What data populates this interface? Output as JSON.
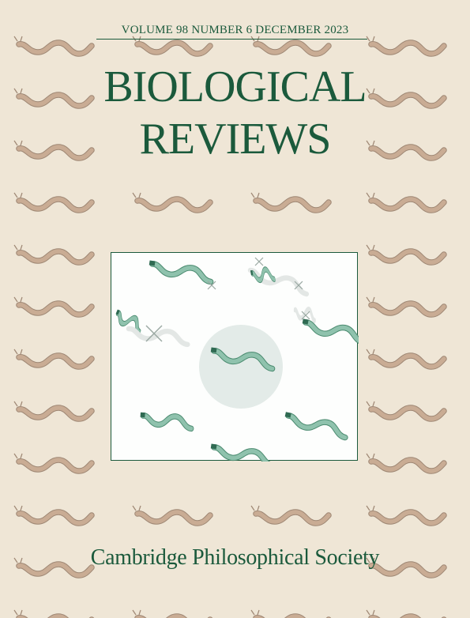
{
  "journal": {
    "issue_line": "VOLUME 98  NUMBER 6  DECEMBER 2023",
    "title_line1": "BIOLOGICAL",
    "title_line2": "REVIEWS",
    "publisher": "Cambridge Philosophical Society"
  },
  "colors": {
    "background": "#efe6d6",
    "brand_green": "#1b5a3c",
    "worm_pattern": "#c9ac94",
    "worm_green": "#7fb5a0",
    "worm_faded": "#e6ecea",
    "circle_fill": "#e3ebe8"
  },
  "icons": {
    "background_pattern": "worm-icon",
    "panel_illustration": "worm-icon"
  }
}
